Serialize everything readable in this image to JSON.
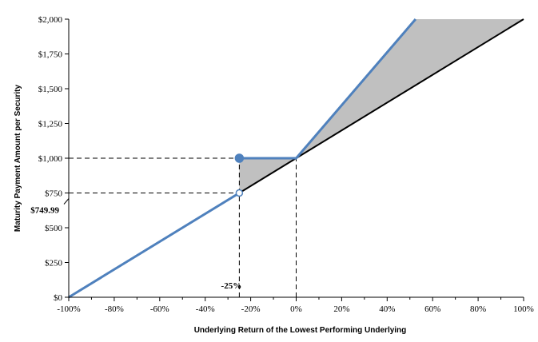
{
  "chart_data": {
    "type": "line",
    "title": "",
    "xlabel": "Underlying Return of the Lowest Performing Underlying",
    "ylabel": "Maturity Payment Amount per Security",
    "xlim": [
      -100,
      100
    ],
    "ylim": [
      0,
      2000
    ],
    "x_ticks": [
      -100,
      -80,
      -60,
      -40,
      -20,
      0,
      20,
      40,
      60,
      80,
      100
    ],
    "x_tick_labels": [
      "-100%",
      "-80%",
      "-60%",
      "-40%",
      "-20%",
      "0%",
      "20%",
      "40%",
      "60%",
      "80%",
      "100%"
    ],
    "y_ticks": [
      0,
      250,
      500,
      750,
      1000,
      1250,
      1500,
      1750,
      2000
    ],
    "y_tick_labels": [
      "$0",
      "$250",
      "$500",
      "$750",
      "$1,000",
      "$1,250",
      "$1,500",
      "$1,750",
      "$2,000"
    ],
    "grid": false,
    "legend": "none",
    "colors": {
      "security": "#4f81bd",
      "underlying": "#000000",
      "shade": "#c0c0c0",
      "guide": "#000000"
    },
    "series": [
      {
        "style": "security-blue",
        "segments": [
          [
            [
              -100,
              0
            ],
            [
              -25,
              749.99
            ]
          ],
          [
            [
              -25,
              1000
            ],
            [
              0,
              1000
            ],
            [
              52.5,
              2000
            ]
          ]
        ]
      },
      {
        "style": "underlying-black",
        "points": [
          [
            -25,
            749.99
          ],
          [
            100,
            2000
          ]
        ]
      }
    ],
    "shaded_regions": [
      [
        [
          -25,
          749.99
        ],
        [
          -25,
          1000
        ],
        [
          0,
          1000
        ]
      ],
      [
        [
          0,
          1000
        ],
        [
          52.5,
          2000
        ],
        [
          100,
          2000
        ]
      ]
    ],
    "markers": [
      {
        "x": -25,
        "y": 1000,
        "fill": "filled"
      },
      {
        "x": -25,
        "y": 749.99,
        "fill": "hollow"
      }
    ],
    "reference_lines": [
      {
        "points": [
          [
            -100,
            1000
          ],
          [
            0,
            1000
          ]
        ]
      },
      {
        "points": [
          [
            -100,
            750
          ],
          [
            -25,
            750
          ]
        ]
      },
      {
        "points": [
          [
            -25,
            0
          ],
          [
            -25,
            1000
          ]
        ]
      },
      {
        "points": [
          [
            0,
            0
          ],
          [
            0,
            1000
          ]
        ]
      }
    ],
    "annotations": [
      {
        "text": "$749.99",
        "x": -100,
        "y": 749.99
      },
      {
        "text": "-25%",
        "x": -25,
        "y": 0
      }
    ]
  }
}
